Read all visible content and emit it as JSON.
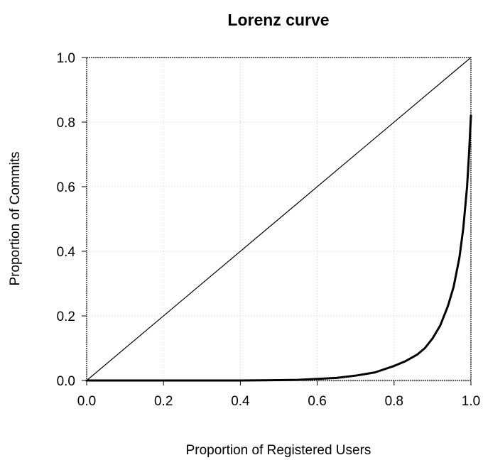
{
  "chart_data": {
    "type": "line",
    "title": "Lorenz curve",
    "xlabel": "Proportion of Registered Users",
    "ylabel": "Proportion of Commits",
    "xlim": [
      0.0,
      1.0
    ],
    "ylim": [
      0.0,
      1.0
    ],
    "x_ticks": [
      "0.0",
      "0.2",
      "0.4",
      "0.6",
      "0.8",
      "1.0"
    ],
    "y_ticks": [
      "0.0",
      "0.2",
      "0.4",
      "0.6",
      "0.8",
      "1.0"
    ],
    "grid": true,
    "legend": "none",
    "series": [
      {
        "role": "equality-line",
        "color": "#000000",
        "points": [
          [
            0.0,
            0.0
          ],
          [
            1.0,
            1.0
          ]
        ]
      },
      {
        "role": "lorenz-curve",
        "color": "#000000",
        "points": [
          [
            0.0,
            0.0
          ],
          [
            0.3,
            0.0
          ],
          [
            0.4,
            0.0
          ],
          [
            0.5,
            0.001
          ],
          [
            0.55,
            0.002
          ],
          [
            0.6,
            0.005
          ],
          [
            0.65,
            0.008
          ],
          [
            0.7,
            0.015
          ],
          [
            0.75,
            0.025
          ],
          [
            0.8,
            0.045
          ],
          [
            0.83,
            0.06
          ],
          [
            0.86,
            0.08
          ],
          [
            0.88,
            0.1
          ],
          [
            0.9,
            0.13
          ],
          [
            0.92,
            0.17
          ],
          [
            0.94,
            0.23
          ],
          [
            0.955,
            0.29
          ],
          [
            0.97,
            0.38
          ],
          [
            0.98,
            0.47
          ],
          [
            0.99,
            0.6
          ],
          [
            0.995,
            0.7
          ],
          [
            1.0,
            0.82
          ]
        ]
      }
    ]
  },
  "colors": {
    "line": "#000000",
    "grid": "#cccccc",
    "background": "#ffffff"
  }
}
